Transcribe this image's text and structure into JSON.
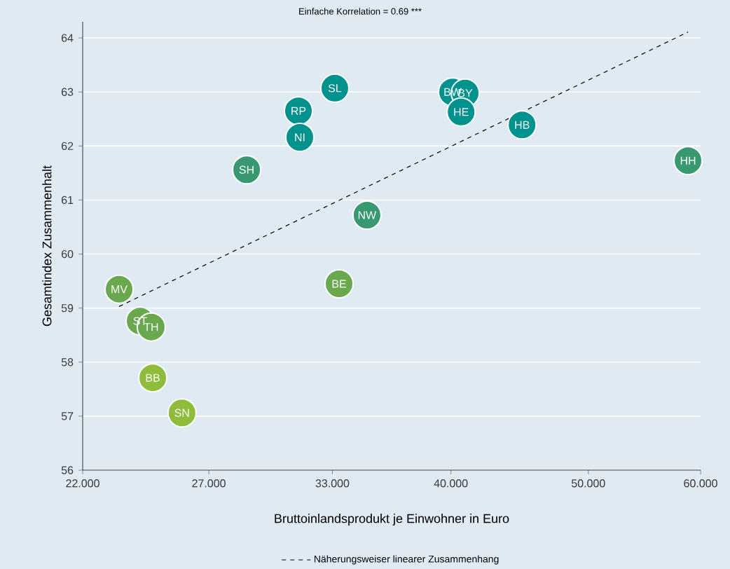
{
  "chart_data": {
    "type": "scatter",
    "title": "Einfache Korrelation = 0.69 ***",
    "xlabel": "Bruttoinlandsprodukt je Einwohner in Euro",
    "ylabel": "Gesamtindex Zusammenhalt",
    "log": "x",
    "xlim": [
      22,
      60
    ],
    "ylim": [
      56,
      64.3
    ],
    "xticks": [
      {
        "value": 22,
        "label": "22.000"
      },
      {
        "value": 27,
        "label": "27.000"
      },
      {
        "value": 33,
        "label": "33.000"
      },
      {
        "value": 40,
        "label": "40.000"
      },
      {
        "value": 50,
        "label": "50.000"
      },
      {
        "value": 60,
        "label": "60.000"
      }
    ],
    "yticks": [
      56,
      57,
      58,
      59,
      60,
      61,
      62,
      63,
      64
    ],
    "grid": "y",
    "legend": "bottom",
    "marker": "circle",
    "series": [
      {
        "color": "#00928c",
        "x": [
          33.13,
          31.23,
          31.3,
          40.11,
          40.94,
          40.67,
          44.9
        ],
        "values": [
          63.07,
          62.65,
          62.16,
          63.0,
          62.98,
          62.63,
          62.39
        ]
      },
      {
        "color": "#38986f",
        "x": [
          28.71,
          34.91,
          58.79
        ],
        "values": [
          61.56,
          60.72,
          61.73
        ]
      },
      {
        "color": "#6aa84f",
        "x": [
          33.36,
          23.34,
          24.15,
          24.59
        ],
        "values": [
          59.45,
          59.35,
          58.76,
          58.65
        ]
      },
      {
        "color": "#8fbc3b",
        "x": [
          24.65,
          25.85
        ],
        "values": [
          57.71,
          57.06
        ]
      },
      {
        "type": "line",
        "name": "Näherungsweiser linearer Zusammenhang",
        "color": "#000000",
        "line_style": "dashed",
        "marker": "none",
        "x": [
          23.34,
          58.79
        ],
        "values": [
          59.03,
          64.11
        ]
      }
    ],
    "annotations": [
      {
        "text": "SL",
        "x": 33.13,
        "y": 63.07
      },
      {
        "text": "RP",
        "x": 31.23,
        "y": 62.65
      },
      {
        "text": "NI",
        "x": 31.3,
        "y": 62.16
      },
      {
        "text": "BW",
        "x": 40.11,
        "y": 63.0
      },
      {
        "text": "BY",
        "x": 40.94,
        "y": 62.98
      },
      {
        "text": "HE",
        "x": 40.67,
        "y": 62.63
      },
      {
        "text": "HB",
        "x": 44.9,
        "y": 62.39
      },
      {
        "text": "SH",
        "x": 28.71,
        "y": 61.56
      },
      {
        "text": "NW",
        "x": 34.91,
        "y": 60.72
      },
      {
        "text": "HH",
        "x": 58.79,
        "y": 61.73
      },
      {
        "text": "BE",
        "x": 33.36,
        "y": 59.45
      },
      {
        "text": "MV",
        "x": 23.34,
        "y": 59.35
      },
      {
        "text": "ST",
        "x": 24.15,
        "y": 58.76
      },
      {
        "text": "TH",
        "x": 24.59,
        "y": 58.65
      },
      {
        "text": "BB",
        "x": 24.65,
        "y": 57.71
      },
      {
        "text": "SN",
        "x": 25.85,
        "y": 57.06
      }
    ]
  }
}
